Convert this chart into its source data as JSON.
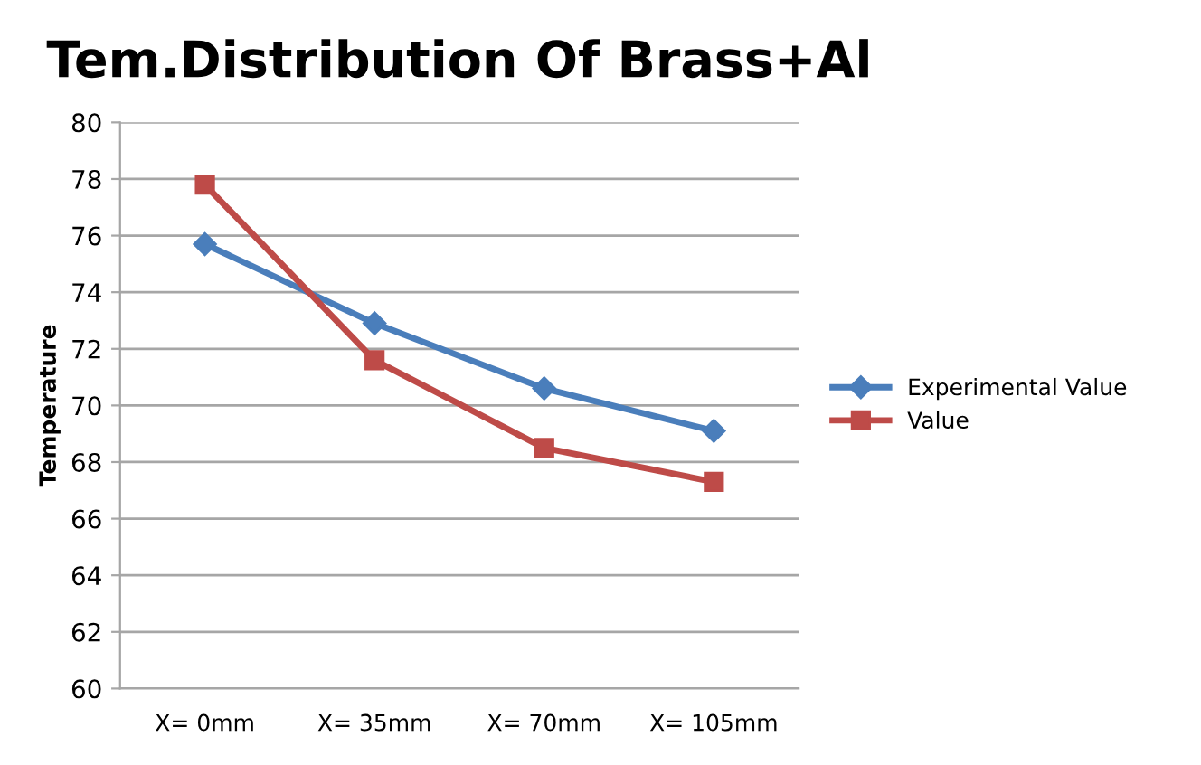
{
  "chart_data": {
    "type": "line",
    "title": "Tem.Distribution Of Brass+Al",
    "ylabel": "Temperature",
    "categories": [
      "X= 0mm",
      "X= 35mm",
      "X= 70mm",
      "X= 105mm"
    ],
    "series": [
      {
        "name": "Experimental Value",
        "color": "#4a7ebb",
        "marker": "diamond",
        "values": [
          75.7,
          72.9,
          70.6,
          69.1
        ]
      },
      {
        "name": "Value",
        "color": "#be4b48",
        "marker": "square",
        "values": [
          77.8,
          71.6,
          68.5,
          67.3
        ]
      }
    ],
    "ylim": [
      60,
      80
    ],
    "yticks": [
      60,
      62,
      64,
      66,
      68,
      70,
      72,
      74,
      76,
      78,
      80
    ],
    "grid": "y",
    "legend": "right"
  }
}
